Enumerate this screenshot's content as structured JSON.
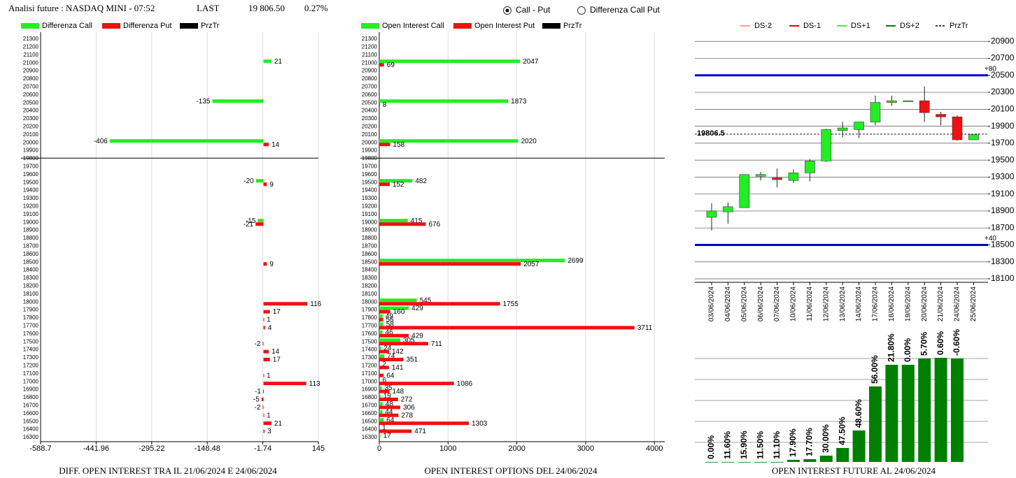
{
  "header": {
    "title": "Analisi future : NASDAQ MINI - 07:52",
    "last_label": "LAST",
    "last_value": "19 806.50",
    "change": "0.27%"
  },
  "controls": {
    "options": [
      "Call - Put",
      "Differenza Call Put"
    ],
    "selected": 0
  },
  "chart_data": [
    {
      "type": "hbar",
      "title": "DIFF. OPEN INTEREST TRA IL 21/06/2024 E 24/06/2024",
      "categories": [
        21300,
        21200,
        21100,
        21000,
        20900,
        20800,
        20700,
        20600,
        20500,
        20400,
        20300,
        20200,
        20100,
        20000,
        19900,
        19800,
        19700,
        19600,
        19500,
        19400,
        19300,
        19200,
        19100,
        19000,
        18900,
        18800,
        18700,
        18600,
        18500,
        18400,
        18300,
        18200,
        18100,
        18000,
        17900,
        17800,
        17700,
        17600,
        17500,
        17400,
        17300,
        17200,
        17100,
        17000,
        16900,
        16800,
        16700,
        16600,
        16500,
        16400,
        16300
      ],
      "series": [
        {
          "name": "Differenza Call",
          "color": "#22ee22",
          "values": [
            null,
            null,
            null,
            21,
            null,
            null,
            null,
            null,
            -135,
            null,
            null,
            null,
            null,
            -406,
            null,
            null,
            null,
            null,
            -20,
            null,
            null,
            null,
            null,
            -15,
            null,
            null,
            null,
            null,
            null,
            null,
            null,
            null,
            null,
            null,
            null,
            null,
            null,
            null,
            null,
            null,
            null,
            null,
            null,
            null,
            null,
            null,
            null,
            null,
            null,
            null,
            null
          ]
        },
        {
          "name": "Differenza Put",
          "color": "#ee1111",
          "values": [
            null,
            null,
            null,
            null,
            null,
            null,
            null,
            null,
            null,
            null,
            null,
            null,
            null,
            14,
            null,
            null,
            null,
            null,
            9,
            null,
            null,
            null,
            null,
            -21,
            null,
            null,
            null,
            null,
            9,
            null,
            null,
            null,
            null,
            116,
            17,
            1,
            4,
            null,
            -2,
            14,
            17,
            null,
            1,
            113,
            -1,
            -5,
            -2,
            1,
            21,
            3,
            null
          ]
        }
      ],
      "price_line": {
        "name": "PrzTr",
        "color": "#000000",
        "value": 19806.5
      },
      "xlim": [
        -588.7,
        145
      ],
      "xticks": [
        -588.7,
        -441.96,
        -295.22,
        -148.48,
        -1.74,
        145
      ],
      "grid": true
    },
    {
      "type": "hbar",
      "title": "OPEN INTEREST OPTIONS DEL 24/06/2024",
      "categories": [
        21300,
        21200,
        21100,
        21000,
        20900,
        20800,
        20700,
        20600,
        20500,
        20400,
        20300,
        20200,
        20100,
        20000,
        19900,
        19800,
        19700,
        19600,
        19500,
        19400,
        19300,
        19200,
        19100,
        19000,
        18900,
        18800,
        18700,
        18600,
        18500,
        18400,
        18300,
        18200,
        18100,
        18000,
        17900,
        17800,
        17700,
        17600,
        17500,
        17400,
        17300,
        17200,
        17100,
        17000,
        16900,
        16800,
        16700,
        16600,
        16500,
        16400,
        16300
      ],
      "series": [
        {
          "name": "Open Interest Call",
          "color": "#22ee22",
          "values": [
            null,
            null,
            null,
            2047,
            null,
            null,
            null,
            null,
            1873,
            null,
            null,
            null,
            null,
            2020,
            null,
            null,
            null,
            null,
            482,
            null,
            null,
            null,
            null,
            415,
            null,
            null,
            null,
            null,
            2699,
            null,
            null,
            null,
            null,
            545,
            429,
            49,
            58,
            46,
            305,
            24,
            74,
            2,
            null,
            6,
            35,
            19,
            48,
            44,
            64,
            1,
            17
          ]
        },
        {
          "name": "Open Interest Put",
          "color": "#ee1111",
          "values": [
            null,
            null,
            null,
            69,
            null,
            null,
            null,
            null,
            8,
            null,
            null,
            null,
            null,
            158,
            null,
            null,
            null,
            null,
            152,
            null,
            null,
            null,
            null,
            676,
            null,
            null,
            null,
            null,
            2057,
            null,
            null,
            null,
            null,
            1755,
            160,
            56,
            3711,
            429,
            711,
            142,
            351,
            141,
            64,
            1086,
            148,
            272,
            306,
            278,
            1303,
            471,
            null
          ]
        }
      ],
      "price_line": {
        "name": "PrzTr",
        "color": "#000000",
        "value": 19806.5
      },
      "xlim": [
        0,
        4150
      ],
      "xticks": [
        0,
        1000,
        2000,
        3000,
        4000
      ],
      "grid": true
    },
    {
      "type": "candlestick",
      "categories": [
        "03/06/2024",
        "04/06/2024",
        "05/06/2024",
        "06/06/2024",
        "07/06/2024",
        "10/06/2024",
        "11/06/2024",
        "12/06/2024",
        "13/06/2024",
        "14/06/2024",
        "17/06/2024",
        "18/06/2024",
        "19/06/2024",
        "20/06/2024",
        "21/06/2024",
        "24/06/2024",
        "25/06/2024"
      ],
      "open": [
        18826,
        18890,
        18940,
        19310,
        19290,
        19260,
        19350,
        19490,
        19850,
        19860,
        19950,
        20180,
        20190,
        20200,
        20040,
        20010,
        19740
      ],
      "high": [
        18990,
        19000,
        19330,
        19360,
        19400,
        19390,
        19510,
        19870,
        19950,
        19950,
        20260,
        20260,
        20200,
        20370,
        20070,
        20030,
        19800
      ],
      "low": [
        18670,
        18750,
        18940,
        19260,
        19180,
        19230,
        19250,
        19480,
        19770,
        19760,
        19910,
        20140,
        20190,
        19950,
        19910,
        19730,
        19740
      ],
      "close": [
        18900,
        18950,
        19330,
        19330,
        19270,
        19350,
        19490,
        19860,
        19880,
        19950,
        20180,
        20200,
        20200,
        20060,
        20010,
        19740,
        19800
      ],
      "up_color": "#22ee22",
      "down_color": "#ee1111",
      "ylim": [
        18100,
        20960
      ],
      "yticks": [
        18100,
        18300,
        18500,
        18700,
        18900,
        19100,
        19300,
        19500,
        19700,
        19900,
        20100,
        20300,
        20500,
        20700,
        20900
      ],
      "grid": true,
      "reference_lines": [
        {
          "value": 20500,
          "label": "+80",
          "color": "#0000cc"
        },
        {
          "value": 18500,
          "label": "+40",
          "color": "#0000cc"
        }
      ],
      "price_line": {
        "name": "PrzTr",
        "color": "#000000",
        "value": 19806.5
      },
      "legend_entries": [
        {
          "name": "DS-2",
          "color": "#f4a582"
        },
        {
          "name": "DS-1",
          "color": "#ff0000"
        },
        {
          "name": "DS+1",
          "color": "#33ff33"
        },
        {
          "name": "DS+2",
          "color": "#008000"
        }
      ]
    },
    {
      "type": "bar",
      "title": "OPEN INTEREST FUTURE AL 24/06/2024",
      "values": [
        0,
        0,
        0,
        0,
        0,
        3,
        4,
        9,
        20,
        45,
        108,
        139,
        139,
        148,
        149,
        148
      ],
      "bar_labels": [
        "0.00%",
        "11.60%",
        "15.90%",
        "11.50%",
        "11.10%",
        "17.90%",
        "17.70%",
        "30.00%",
        "47.50%",
        "48.60%",
        "56.00%",
        "21.80%",
        "0.00%",
        "5.70%",
        "0.60%",
        "-0.60%"
      ],
      "color": "#008000",
      "ylim": [
        0,
        160
      ],
      "yticks": [
        28,
        58,
        88,
        118,
        148
      ],
      "grid": true
    }
  ]
}
